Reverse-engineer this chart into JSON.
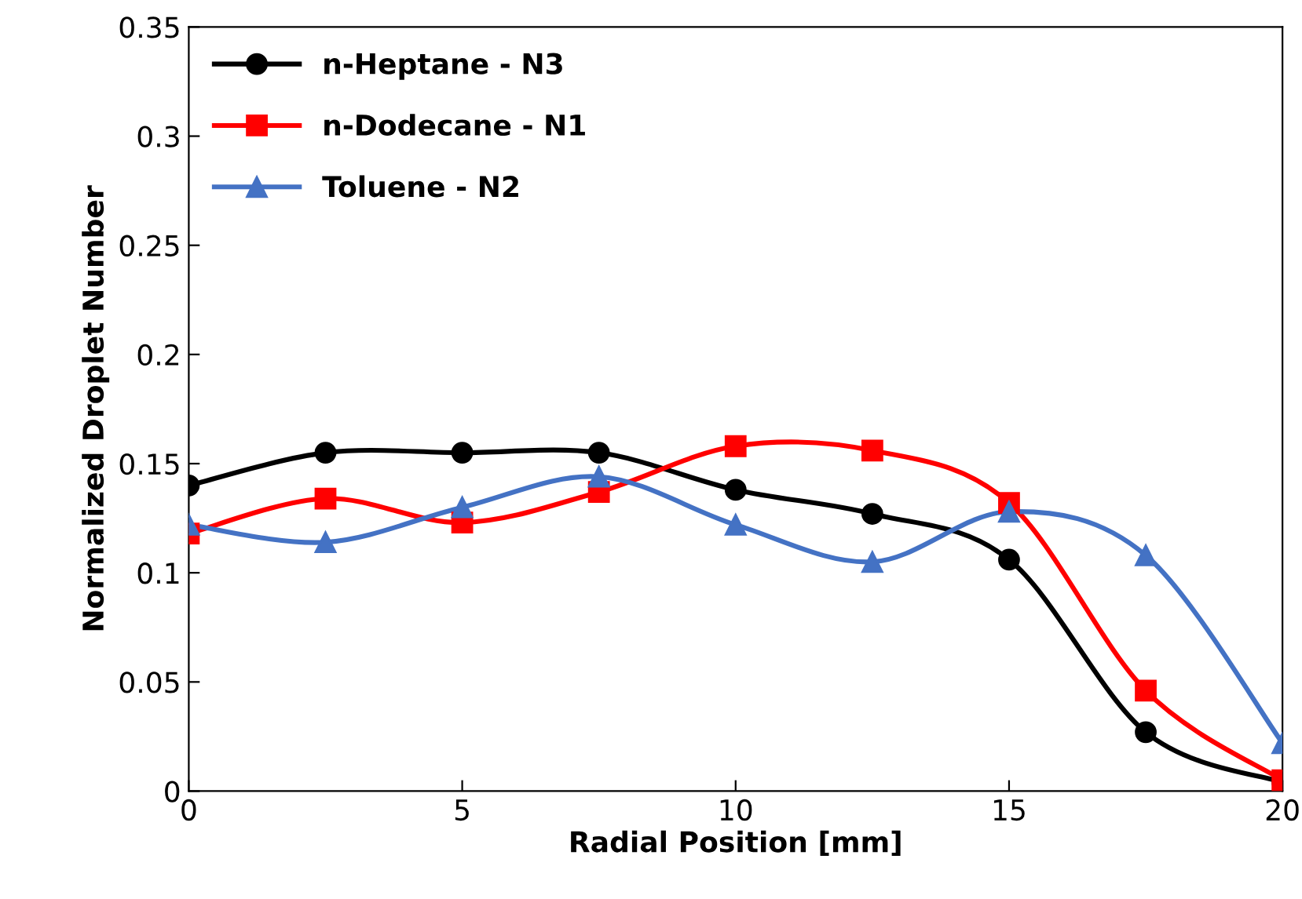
{
  "chart_data": {
    "type": "line",
    "xlabel": "Radial Position [mm]",
    "ylabel": "Normalized Droplet Number",
    "x": [
      0,
      2.5,
      5,
      7.5,
      10,
      12.5,
      15,
      17.5,
      20
    ],
    "series": [
      {
        "name": "n-Heptane - N3",
        "color": "#000000",
        "marker": "circle",
        "values": [
          0.14,
          0.155,
          0.155,
          0.155,
          0.138,
          0.127,
          0.106,
          0.027,
          0.004
        ]
      },
      {
        "name": "n-Dodecane - N1",
        "color": "#ff0000",
        "marker": "square",
        "values": [
          0.118,
          0.134,
          0.123,
          0.137,
          0.158,
          0.156,
          0.132,
          0.046,
          0.005
        ]
      },
      {
        "name": "Toluene - N2",
        "color": "#4472c4",
        "marker": "triangle",
        "values": [
          0.122,
          0.114,
          0.13,
          0.144,
          0.122,
          0.105,
          0.128,
          0.108,
          0.022
        ]
      }
    ],
    "xlim": [
      0,
      20
    ],
    "xticks": [
      0,
      5,
      10,
      15,
      20
    ],
    "ylim": [
      0,
      0.35
    ],
    "yticks": [
      0,
      0.05,
      0.1,
      0.15,
      0.2,
      0.25,
      0.3,
      0.35
    ],
    "grid": false,
    "legend": "top left",
    "line_style": "solid"
  }
}
